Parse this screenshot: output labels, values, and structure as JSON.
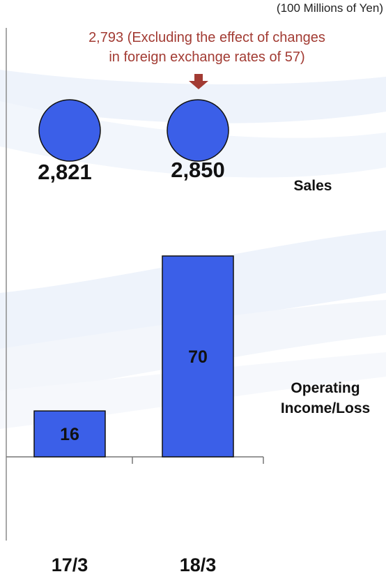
{
  "unit_label": "(100 Millions of Yen)",
  "note": {
    "line1": "2,793 (Excluding the effect of changes",
    "line2": "in foreign exchange rates of 57)",
    "color": "#a23b33"
  },
  "series_labels": {
    "sales": "Sales",
    "operating_line1": "Operating",
    "operating_line2": "Income/Loss"
  },
  "colors": {
    "circle_fill": "#3b5fe8",
    "bar_fill": "#3b5fe8",
    "arrow": "#a23b33"
  },
  "chart_data": [
    {
      "type": "scatter",
      "title": "",
      "series": [
        {
          "name": "Sales",
          "values": [
            2821,
            2850
          ]
        }
      ],
      "categories": [
        "17/3",
        "18/3"
      ],
      "data_labels": [
        "2,821",
        "2,850"
      ]
    },
    {
      "type": "bar",
      "title": "",
      "categories": [
        "17/3",
        "18/3"
      ],
      "series": [
        {
          "name": "Operating Income/Loss",
          "values": [
            16,
            70
          ]
        }
      ],
      "ylim": [
        0,
        75
      ],
      "grid": false
    }
  ]
}
